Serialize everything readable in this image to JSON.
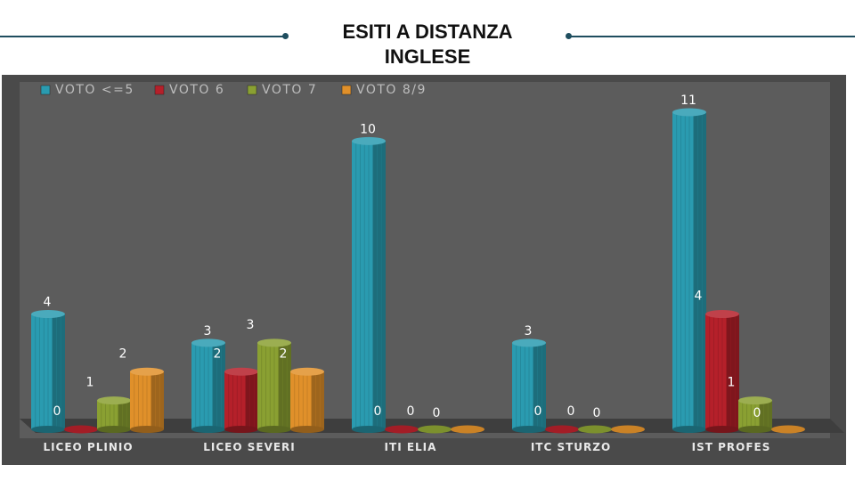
{
  "chart_data": {
    "type": "bar",
    "title": [
      "ESITI A DISTANZA",
      "INGLESE"
    ],
    "categories": [
      "LICEO PLINIO",
      "LICEO SEVERI",
      "ITI  ELIA",
      "ITC STURZO",
      "IST PROFES"
    ],
    "series": [
      {
        "name": "VOTO <=5",
        "color": "#2a9bb0",
        "values": [
          4,
          3,
          10,
          3,
          11
        ]
      },
      {
        "name": "VOTO 6",
        "color": "#b5202a",
        "values": [
          0,
          2,
          0,
          0,
          4
        ]
      },
      {
        "name": "VOTO 7",
        "color": "#8aa032",
        "values": [
          1,
          3,
          0,
          0,
          1
        ]
      },
      {
        "name": "VOTO 8/9",
        "color": "#e0902a",
        "values": [
          2,
          2,
          0,
          0,
          0
        ]
      }
    ],
    "data_labels": [
      [
        "4",
        "3",
        "10",
        "3",
        "11"
      ],
      [
        "0",
        "2",
        "0",
        "0",
        "4"
      ],
      [
        "1",
        "3",
        "0",
        "0",
        "1"
      ],
      [
        "2",
        "2",
        "0",
        "0",
        "0"
      ]
    ],
    "ylim": [
      0,
      11
    ],
    "grid": false,
    "legend": "top-left",
    "background": "#5a5a5a",
    "frame": "#4a4a4a"
  }
}
